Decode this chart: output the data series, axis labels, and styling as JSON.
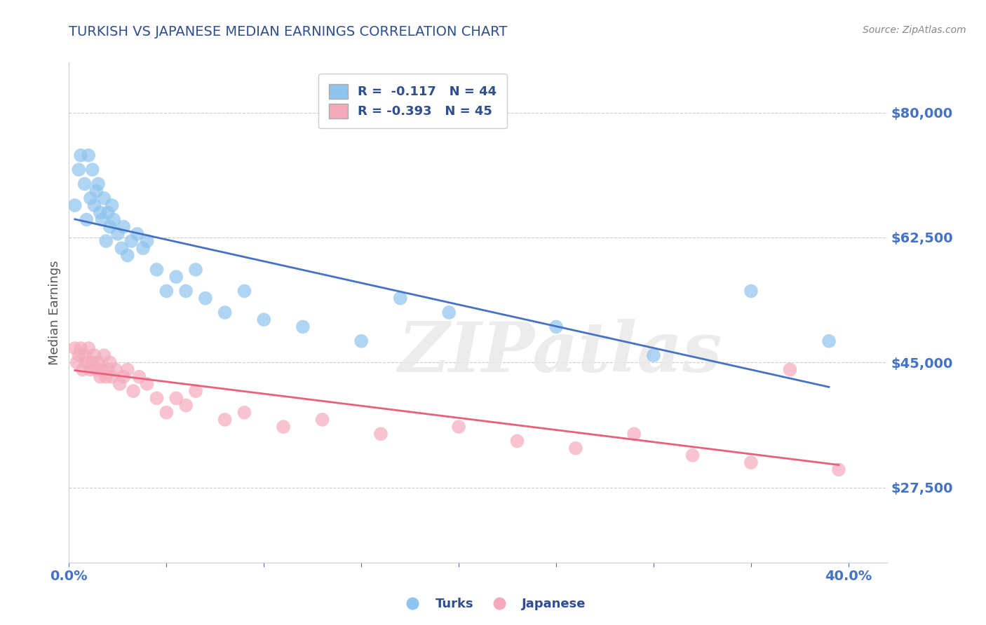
{
  "title": "TURKISH VS JAPANESE MEDIAN EARNINGS CORRELATION CHART",
  "source_text": "Source: ZipAtlas.com",
  "ylabel": "Median Earnings",
  "xlim": [
    0.0,
    0.42
  ],
  "ylim": [
    17000,
    87000
  ],
  "yticks": [
    27500,
    45000,
    62500,
    80000
  ],
  "ytick_labels": [
    "$27,500",
    "$45,000",
    "$62,500",
    "$80,000"
  ],
  "xtick_positions": [
    0.0,
    0.05,
    0.1,
    0.15,
    0.2,
    0.25,
    0.3,
    0.35,
    0.4
  ],
  "turks_color": "#8EC4EE",
  "japanese_color": "#F4AABC",
  "turks_line_color": "#4472C4",
  "japanese_line_color": "#E8607A",
  "legend_line1": "R =  -0.117   N = 44",
  "legend_line2": "R = -0.393   N = 45",
  "watermark": "ZIPatlas",
  "turks_x": [
    0.003,
    0.005,
    0.006,
    0.008,
    0.009,
    0.01,
    0.011,
    0.012,
    0.013,
    0.014,
    0.015,
    0.016,
    0.017,
    0.018,
    0.019,
    0.02,
    0.021,
    0.022,
    0.023,
    0.025,
    0.027,
    0.028,
    0.03,
    0.032,
    0.035,
    0.038,
    0.04,
    0.045,
    0.05,
    0.055,
    0.06,
    0.065,
    0.07,
    0.08,
    0.09,
    0.1,
    0.12,
    0.15,
    0.17,
    0.195,
    0.25,
    0.3,
    0.35,
    0.39
  ],
  "turks_y": [
    67000,
    72000,
    74000,
    70000,
    65000,
    74000,
    68000,
    72000,
    67000,
    69000,
    70000,
    66000,
    65000,
    68000,
    62000,
    66000,
    64000,
    67000,
    65000,
    63000,
    61000,
    64000,
    60000,
    62000,
    63000,
    61000,
    62000,
    58000,
    55000,
    57000,
    55000,
    58000,
    54000,
    52000,
    55000,
    51000,
    50000,
    48000,
    54000,
    52000,
    50000,
    46000,
    55000,
    48000
  ],
  "japanese_x": [
    0.003,
    0.004,
    0.005,
    0.006,
    0.007,
    0.008,
    0.009,
    0.01,
    0.011,
    0.012,
    0.013,
    0.014,
    0.015,
    0.016,
    0.017,
    0.018,
    0.019,
    0.02,
    0.021,
    0.022,
    0.024,
    0.026,
    0.028,
    0.03,
    0.033,
    0.036,
    0.04,
    0.045,
    0.05,
    0.055,
    0.06,
    0.065,
    0.08,
    0.09,
    0.11,
    0.13,
    0.16,
    0.2,
    0.23,
    0.26,
    0.29,
    0.32,
    0.35,
    0.37,
    0.395
  ],
  "japanese_y": [
    47000,
    45000,
    46000,
    47000,
    44000,
    46000,
    45000,
    47000,
    44000,
    45000,
    46000,
    44000,
    45000,
    43000,
    44000,
    46000,
    43000,
    44000,
    45000,
    43000,
    44000,
    42000,
    43000,
    44000,
    41000,
    43000,
    42000,
    40000,
    38000,
    40000,
    39000,
    41000,
    37000,
    38000,
    36000,
    37000,
    35000,
    36000,
    34000,
    33000,
    35000,
    32000,
    31000,
    44000,
    30000
  ],
  "background_color": "#FFFFFF",
  "grid_color": "#CCCCCC",
  "title_color": "#2E4E8E",
  "ylabel_color": "#555555",
  "tick_color": "#4472C4",
  "source_color": "#888888"
}
